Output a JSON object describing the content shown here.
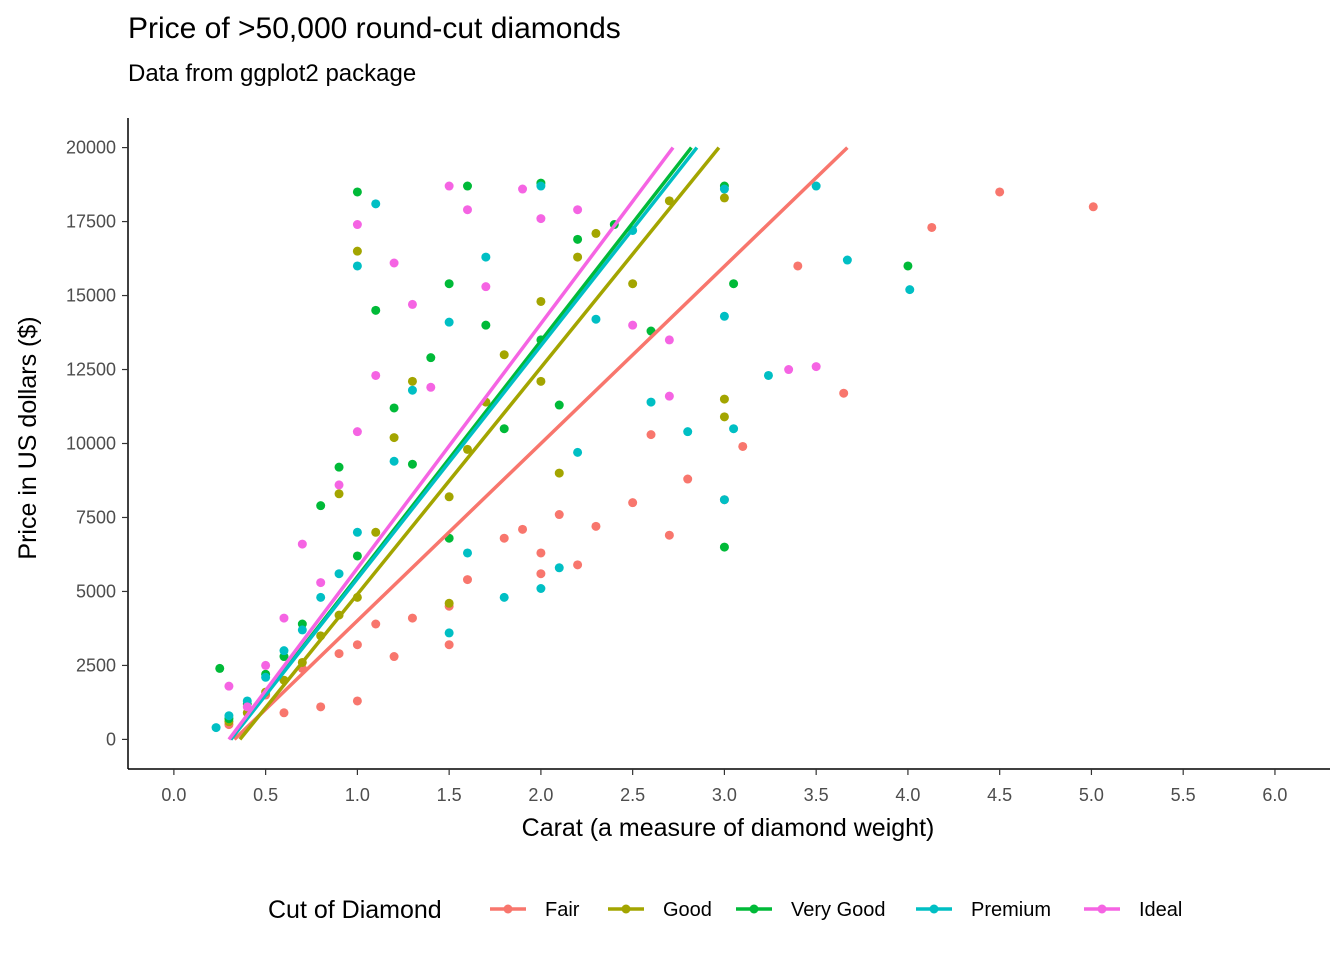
{
  "chart_data": {
    "type": "scatter",
    "title": "Price of >50,000 round-cut diamonds",
    "subtitle": "Data from ggplot2 package",
    "xlabel": "Carat (a measure of diamond weight)",
    "ylabel": "Price in US dollars ($)",
    "xlim": [
      -0.25,
      6.3
    ],
    "ylim": [
      -1000,
      21000
    ],
    "x_ticks": [
      "0.0",
      "0.5",
      "1.0",
      "1.5",
      "2.0",
      "2.5",
      "3.0",
      "3.5",
      "4.0",
      "4.5",
      "5.0",
      "5.5",
      "6.0"
    ],
    "x_tick_values": [
      0,
      0.5,
      1,
      1.5,
      2,
      2.5,
      3,
      3.5,
      4,
      4.5,
      5,
      5.5,
      6
    ],
    "y_ticks": [
      "0",
      "2500",
      "5000",
      "7500",
      "10000",
      "12500",
      "15000",
      "17500",
      "20000"
    ],
    "y_tick_values": [
      0,
      2500,
      5000,
      7500,
      10000,
      12500,
      15000,
      17500,
      20000
    ],
    "grid": false,
    "legend": {
      "title": "Cut of Diamond",
      "placement": "bottom",
      "entries": [
        "Fair",
        "Good",
        "Very Good",
        "Premium",
        "Ideal"
      ]
    },
    "series": [
      {
        "name": "Fair",
        "color": "#F8766D",
        "trend": [
          [
            0.33,
            0
          ],
          [
            3.67,
            20000
          ]
        ],
        "points": [
          [
            0.3,
            500
          ],
          [
            0.5,
            1500
          ],
          [
            0.6,
            900
          ],
          [
            0.7,
            2400
          ],
          [
            0.8,
            1100
          ],
          [
            0.9,
            2900
          ],
          [
            1.0,
            3200
          ],
          [
            1.0,
            1300
          ],
          [
            1.1,
            3900
          ],
          [
            1.2,
            2800
          ],
          [
            1.3,
            4100
          ],
          [
            1.5,
            4500
          ],
          [
            1.5,
            3200
          ],
          [
            1.6,
            5400
          ],
          [
            1.8,
            6800
          ],
          [
            1.9,
            7100
          ],
          [
            2.0,
            5600
          ],
          [
            2.0,
            6300
          ],
          [
            2.1,
            7600
          ],
          [
            2.2,
            5900
          ],
          [
            2.3,
            7200
          ],
          [
            2.5,
            8000
          ],
          [
            2.6,
            10300
          ],
          [
            2.7,
            6900
          ],
          [
            2.8,
            8800
          ],
          [
            3.0,
            8100
          ],
          [
            3.1,
            9900
          ],
          [
            3.4,
            16000
          ],
          [
            3.65,
            11700
          ],
          [
            4.13,
            17300
          ],
          [
            4.5,
            18500
          ],
          [
            5.01,
            18000
          ]
        ]
      },
      {
        "name": "Good",
        "color": "#A3A500",
        "trend": [
          [
            0.36,
            0
          ],
          [
            2.97,
            20000
          ]
        ],
        "points": [
          [
            0.3,
            600
          ],
          [
            0.4,
            900
          ],
          [
            0.5,
            1600
          ],
          [
            0.6,
            2000
          ],
          [
            0.7,
            2600
          ],
          [
            0.8,
            3500
          ],
          [
            0.9,
            4200
          ],
          [
            0.9,
            8300
          ],
          [
            1.0,
            4800
          ],
          [
            1.0,
            16500
          ],
          [
            1.1,
            7000
          ],
          [
            1.2,
            10200
          ],
          [
            1.3,
            12100
          ],
          [
            1.5,
            8200
          ],
          [
            1.5,
            4600
          ],
          [
            1.6,
            9800
          ],
          [
            1.7,
            11400
          ],
          [
            1.8,
            13000
          ],
          [
            2.0,
            12100
          ],
          [
            2.0,
            14800
          ],
          [
            2.1,
            9000
          ],
          [
            2.2,
            16300
          ],
          [
            2.3,
            17100
          ],
          [
            2.5,
            15400
          ],
          [
            2.7,
            18200
          ],
          [
            3.0,
            11500
          ],
          [
            3.0,
            10900
          ],
          [
            3.0,
            18300
          ]
        ]
      },
      {
        "name": "Very Good",
        "color": "#00BA38",
        "trend": [
          [
            0.31,
            0
          ],
          [
            2.82,
            20000
          ]
        ],
        "points": [
          [
            0.25,
            2400
          ],
          [
            0.3,
            700
          ],
          [
            0.4,
            1200
          ],
          [
            0.5,
            2200
          ],
          [
            0.6,
            2800
          ],
          [
            0.7,
            3900
          ],
          [
            0.8,
            7900
          ],
          [
            0.9,
            9200
          ],
          [
            1.0,
            18500
          ],
          [
            1.0,
            6200
          ],
          [
            1.1,
            14500
          ],
          [
            1.2,
            11200
          ],
          [
            1.3,
            9300
          ],
          [
            1.4,
            12900
          ],
          [
            1.5,
            15400
          ],
          [
            1.5,
            6800
          ],
          [
            1.6,
            18700
          ],
          [
            1.7,
            14000
          ],
          [
            1.8,
            10500
          ],
          [
            2.0,
            18800
          ],
          [
            2.0,
            13500
          ],
          [
            2.1,
            11300
          ],
          [
            2.2,
            16900
          ],
          [
            2.4,
            17400
          ],
          [
            2.6,
            13800
          ],
          [
            3.0,
            6500
          ],
          [
            3.0,
            18700
          ],
          [
            3.05,
            15400
          ],
          [
            4.0,
            16000
          ]
        ]
      },
      {
        "name": "Premium",
        "color": "#00BFC4",
        "trend": [
          [
            0.31,
            0
          ],
          [
            2.85,
            20000
          ]
        ],
        "points": [
          [
            0.23,
            400
          ],
          [
            0.3,
            800
          ],
          [
            0.4,
            1300
          ],
          [
            0.5,
            2100
          ],
          [
            0.6,
            3000
          ],
          [
            0.7,
            3700
          ],
          [
            0.8,
            4800
          ],
          [
            0.9,
            5600
          ],
          [
            1.0,
            7000
          ],
          [
            1.0,
            16000
          ],
          [
            1.1,
            18100
          ],
          [
            1.2,
            9400
          ],
          [
            1.3,
            11800
          ],
          [
            1.5,
            3600
          ],
          [
            1.5,
            14100
          ],
          [
            1.6,
            6300
          ],
          [
            1.7,
            16300
          ],
          [
            1.8,
            4800
          ],
          [
            2.0,
            5100
          ],
          [
            2.0,
            18700
          ],
          [
            2.1,
            5800
          ],
          [
            2.2,
            9700
          ],
          [
            2.3,
            14200
          ],
          [
            2.5,
            17200
          ],
          [
            2.6,
            11400
          ],
          [
            2.8,
            10400
          ],
          [
            3.0,
            8100
          ],
          [
            3.0,
            14300
          ],
          [
            3.0,
            18600
          ],
          [
            3.05,
            10500
          ],
          [
            3.24,
            12300
          ],
          [
            3.5,
            18700
          ],
          [
            3.67,
            16200
          ],
          [
            4.01,
            15200
          ]
        ]
      },
      {
        "name": "Ideal",
        "color": "#F564E3",
        "trend": [
          [
            0.3,
            0
          ],
          [
            2.72,
            20000
          ]
        ],
        "points": [
          [
            0.3,
            1800
          ],
          [
            0.4,
            1100
          ],
          [
            0.5,
            2500
          ],
          [
            0.6,
            4100
          ],
          [
            0.7,
            6600
          ],
          [
            0.8,
            5300
          ],
          [
            0.9,
            8600
          ],
          [
            1.0,
            10400
          ],
          [
            1.0,
            17400
          ],
          [
            1.1,
            12300
          ],
          [
            1.2,
            16100
          ],
          [
            1.3,
            14700
          ],
          [
            1.4,
            11900
          ],
          [
            1.5,
            18700
          ],
          [
            1.6,
            17900
          ],
          [
            1.7,
            15300
          ],
          [
            1.9,
            18600
          ],
          [
            2.0,
            17600
          ],
          [
            2.2,
            17900
          ],
          [
            2.5,
            14000
          ],
          [
            2.7,
            11600
          ],
          [
            2.7,
            13500
          ],
          [
            3.35,
            12500
          ],
          [
            3.5,
            12600
          ]
        ]
      }
    ]
  }
}
